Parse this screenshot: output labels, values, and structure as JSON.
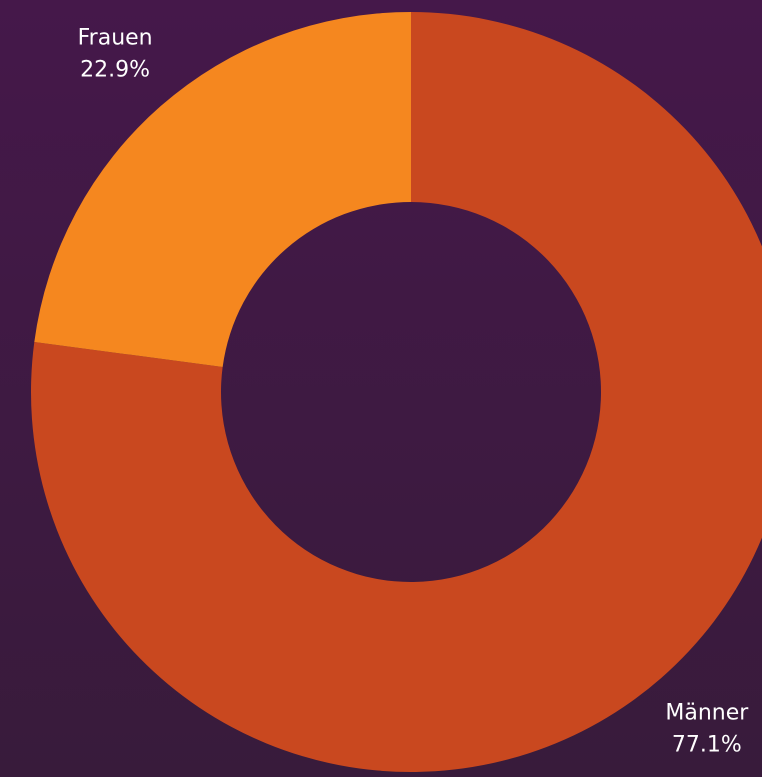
{
  "chart_data": {
    "type": "donut",
    "categories": [
      "Männer",
      "Frauen"
    ],
    "values": [
      77.1,
      22.9
    ],
    "value_labels": [
      "77.1%",
      "22.9%"
    ],
    "colors": [
      "#c9481f",
      "#f5871f"
    ]
  }
}
